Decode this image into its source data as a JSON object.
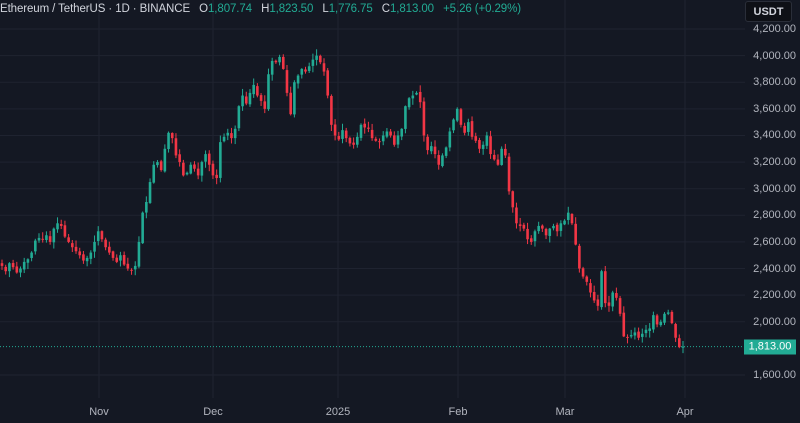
{
  "header": {
    "symbol": "Ethereum / TetherUS · 1D · BINANCE",
    "open_label": "O",
    "open": "1,807.74",
    "high_label": "H",
    "high": "1,823.50",
    "low_label": "L",
    "low": "1,776.75",
    "close_label": "C",
    "close": "1,813.00",
    "change": "+5.26 (+0.29%)"
  },
  "currency_button": "USDT",
  "last_price_badge": "1,813.00",
  "colors": {
    "background": "#141823",
    "up": "#22ab94",
    "down": "#f23645",
    "grid": "#1f2330",
    "text": "#b2b5be"
  },
  "chart_data": {
    "type": "candlestick",
    "title": "Ethereum / TetherUS · 1D · BINANCE",
    "xlabel": "",
    "ylabel": "USDT",
    "ylim": [
      1500,
      4250
    ],
    "y_ticks": [
      "4,200.00",
      "4,000.00",
      "3,800.00",
      "3,600.00",
      "3,400.00",
      "3,200.00",
      "3,000.00",
      "2,800.00",
      "2,600.00",
      "2,400.00",
      "2,200.00",
      "2,000.00",
      "1,600.00"
    ],
    "y_tick_values": [
      4200,
      4000,
      3800,
      3600,
      3400,
      3200,
      3000,
      2800,
      2600,
      2400,
      2200,
      2000,
      1600
    ],
    "x_ticks": [
      "Nov",
      "Dec",
      "2025",
      "Feb",
      "Mar",
      "Apr"
    ],
    "x_tick_pos": [
      99,
      213,
      338,
      458,
      565,
      685
    ],
    "grid": true,
    "last_close": 1813.0,
    "closes": [
      2420,
      2380,
      2440,
      2410,
      2370,
      2400,
      2450,
      2470,
      2520,
      2610,
      2630,
      2620,
      2650,
      2600,
      2700,
      2740,
      2720,
      2640,
      2600,
      2560,
      2530,
      2500,
      2460,
      2480,
      2520,
      2600,
      2680,
      2620,
      2560,
      2520,
      2480,
      2450,
      2500,
      2430,
      2400,
      2390,
      2420,
      2600,
      2820,
      2900,
      3050,
      3180,
      3200,
      3140,
      3300,
      3420,
      3380,
      3250,
      3200,
      3100,
      3120,
      3180,
      3150,
      3100,
      3200,
      3260,
      3180,
      3100,
      3080,
      3350,
      3390,
      3420,
      3380,
      3450,
      3620,
      3700,
      3640,
      3720,
      3780,
      3700,
      3660,
      3600,
      3860,
      3960,
      3950,
      3990,
      3900,
      3720,
      3560,
      3800,
      3850,
      3900,
      3880,
      3920,
      3970,
      4000,
      3950,
      3880,
      3700,
      3480,
      3400,
      3370,
      3440,
      3380,
      3340,
      3330,
      3390,
      3480,
      3460,
      3450,
      3380,
      3360,
      3350,
      3400,
      3430,
      3400,
      3330,
      3400,
      3450,
      3620,
      3680,
      3700,
      3720,
      3650,
      3400,
      3290,
      3320,
      3260,
      3180,
      3250,
      3310,
      3430,
      3520,
      3600,
      3480,
      3420,
      3500,
      3390,
      3360,
      3300,
      3330,
      3400,
      3260,
      3220,
      3180,
      3300,
      3250,
      2980,
      2860,
      2740,
      2720,
      2700,
      2620,
      2600,
      2680,
      2720,
      2700,
      2650,
      2700,
      2720,
      2680,
      2740,
      2760,
      2820,
      2740,
      2580,
      2400,
      2340,
      2300,
      2220,
      2160,
      2120,
      2380,
      2140,
      2120,
      2220,
      2180,
      2060,
      1890,
      1880,
      1900,
      1920,
      1880,
      1910,
      1940,
      1950,
      2050,
      1980,
      2000,
      2060,
      2070,
      1990,
      1880,
      1810,
      1813
    ]
  }
}
